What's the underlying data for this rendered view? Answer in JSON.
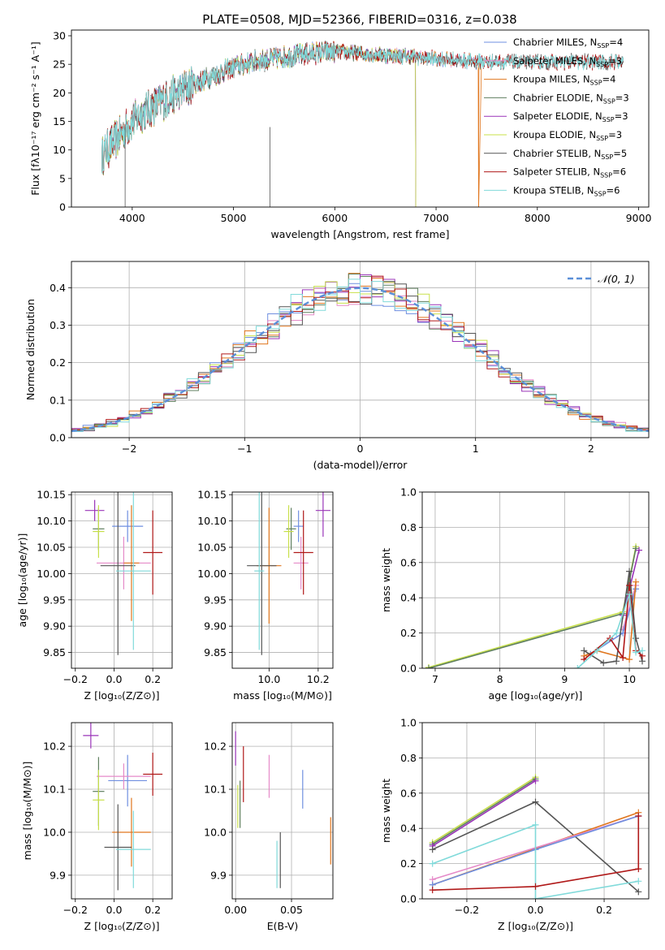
{
  "figure_title": "PLATE=0508, MJD=52366, FIBERID=0316, z=0.038",
  "colors": {
    "Chabrier MILES": "#6f8fe0",
    "Salpeter MILES": "#e58ac8",
    "Kroupa MILES": "#e0761e",
    "Chabrier ELODIE": "#5f7f5f",
    "Salpeter ELODIE": "#9a34b8",
    "Kroupa ELODIE": "#c8e04a",
    "Chabrier STELIB": "#555555",
    "Salpeter STELIB": "#b01818",
    "Kroupa STELIB": "#80dada",
    "gaussian": "#5b8fd8"
  },
  "chart_data": [
    {
      "id": "spectrum",
      "type": "line",
      "title": "PLATE=0508, MJD=52366, FIBERID=0316, z=0.038",
      "xlabel": "wavelength [Angstrom, rest frame]",
      "ylabel": "Flux [fλ10⁻¹⁷ erg cm⁻² s⁻¹ A⁻¹]",
      "xlim": [
        3400,
        9100
      ],
      "ylim": [
        0,
        31
      ],
      "xticks": [
        4000,
        5000,
        6000,
        7000,
        8000,
        9000
      ],
      "yticks": [
        0,
        5,
        10,
        15,
        20,
        25,
        30
      ],
      "legend": "top-right",
      "continuum_x": [
        3700,
        3800,
        3900,
        4000,
        4100,
        4200,
        4300,
        4400,
        4500,
        4600,
        4800,
        5000,
        5200,
        5400,
        5600,
        5800,
        6000,
        6200,
        6400,
        6600,
        6800,
        7000,
        7200,
        7400,
        7500
      ],
      "continuum_y": [
        9,
        11,
        13,
        15,
        16.5,
        17.5,
        18.5,
        19.5,
        20.5,
        21.5,
        23,
        24.5,
        25.5,
        26,
        26.5,
        27,
        27.2,
        27,
        26.7,
        26.5,
        26.3,
        26,
        25.7,
        25.5,
        25.4
      ],
      "series": [
        {
          "name": "Chabrier MILES, N_SSP=4",
          "sub": "SSP",
          "label": "Chabrier MILES, N",
          "tail": "=4",
          "xmax": 7450,
          "drop": null
        },
        {
          "name": "Salpeter MILES, N_SSP=3",
          "sub": "SSP",
          "label": "Salpeter MILES, N",
          "tail": "=3",
          "xmax": 7450,
          "drop": null
        },
        {
          "name": "Kroupa MILES, N_SSP=4",
          "sub": "SSP",
          "label": "Kroupa MILES, N",
          "tail": "=4",
          "xmax": 7450,
          "drop": 7420
        },
        {
          "name": "Chabrier ELODIE, N_SSP=3",
          "sub": "SSP",
          "label": "Chabrier ELODIE, N",
          "tail": "=3",
          "xmax": 6800,
          "drop": 6800
        },
        {
          "name": "Salpeter ELODIE, N_SSP=3",
          "sub": "SSP",
          "label": "Salpeter ELODIE, N",
          "tail": "=3",
          "xmax": 6800,
          "drop": 6800
        },
        {
          "name": "Kroupa ELODIE, N_SSP=3",
          "sub": "SSP",
          "label": "Kroupa ELODIE, N",
          "tail": "=3",
          "xmax": 6800,
          "drop": 6800
        },
        {
          "name": "Chabrier STELIB, N_SSP=5",
          "sub": "SSP",
          "label": "Chabrier STELIB, N",
          "tail": "=5",
          "xmax": 8850,
          "drop": null
        },
        {
          "name": "Salpeter STELIB, N_SSP=6",
          "sub": "SSP",
          "label": "Salpeter STELIB, N",
          "tail": "=6",
          "xmax": 8850,
          "drop": null
        },
        {
          "name": "Kroupa STELIB, N_SSP=6",
          "sub": "SSP",
          "label": "Kroupa STELIB, N",
          "tail": "=6",
          "xmax": 8850,
          "drop": null
        }
      ]
    },
    {
      "id": "residuals",
      "type": "line",
      "xlabel": "(data-model)/error",
      "ylabel": "Normed distribution",
      "xlim": [
        -2.5,
        2.5
      ],
      "ylim": [
        0,
        0.47
      ],
      "xticks": [
        -2,
        -1,
        0,
        1,
        2
      ],
      "yticks": [
        0.0,
        0.1,
        0.2,
        0.3,
        0.4
      ],
      "legend": "top-right",
      "legend_label": "𝒩(0, 1)",
      "bin_width": 0.1
    },
    {
      "id": "age_vs_Z",
      "type": "scatter",
      "xlabel": "Z [log₁₀(Z/Z⊙)]",
      "ylabel": "age  [log₁₀(age/yr)]",
      "xlim": [
        -0.22,
        0.3
      ],
      "ylim": [
        9.82,
        10.155
      ],
      "xticks": [
        -0.2,
        0.0,
        0.2
      ],
      "yticks": [
        9.85,
        9.9,
        9.95,
        10.0,
        10.05,
        10.1,
        10.15
      ],
      "points": [
        {
          "s": "Chabrier MILES",
          "x": 0.07,
          "y": 10.09,
          "xerr": 0.08,
          "yerr": 0.03
        },
        {
          "s": "Salpeter MILES",
          "x": 0.05,
          "y": 10.02,
          "xerr": 0.14,
          "yerr": 0.05
        },
        {
          "s": "Kroupa MILES",
          "x": 0.09,
          "y": 10.02,
          "xerr": 0.04,
          "yerr": 0.11
        },
        {
          "s": "Chabrier ELODIE",
          "x": -0.08,
          "y": 10.085,
          "xerr": 0.03,
          "yerr": 0.04
        },
        {
          "s": "Salpeter ELODIE",
          "x": -0.1,
          "y": 10.12,
          "xerr": 0.05,
          "yerr": 0.02
        },
        {
          "s": "Kroupa ELODIE",
          "x": -0.08,
          "y": 10.08,
          "xerr": 0.03,
          "yerr": 0.05
        },
        {
          "s": "Chabrier STELIB",
          "x": 0.02,
          "y": 10.015,
          "xerr": 0.09,
          "yerr": 0.17
        },
        {
          "s": "Salpeter STELIB",
          "x": 0.2,
          "y": 10.04,
          "xerr": 0.05,
          "yerr": 0.08
        },
        {
          "s": "Kroupa STELIB",
          "x": 0.1,
          "y": 10.005,
          "xerr": 0.09,
          "yerr": 0.15
        }
      ]
    },
    {
      "id": "age_vs_mass",
      "type": "scatter",
      "xlabel": "mass [log₁₀(M/M⊙)]",
      "ylabel": "",
      "xlim": [
        9.85,
        10.26
      ],
      "ylim": [
        9.82,
        10.155
      ],
      "xticks": [
        10.0,
        10.2
      ],
      "yticks": [
        9.85,
        9.9,
        9.95,
        10.0,
        10.05,
        10.1,
        10.15
      ],
      "points": [
        {
          "s": "Chabrier MILES",
          "x": 10.12,
          "y": 10.09,
          "xerr": 0.02,
          "yerr": 0.03
        },
        {
          "s": "Salpeter MILES",
          "x": 10.13,
          "y": 10.02,
          "xerr": 0.03,
          "yerr": 0.05
        },
        {
          "s": "Kroupa MILES",
          "x": 10.0,
          "y": 10.015,
          "xerr": 0.05,
          "yerr": 0.11
        },
        {
          "s": "Chabrier ELODIE",
          "x": 10.09,
          "y": 10.085,
          "xerr": 0.02,
          "yerr": 0.04
        },
        {
          "s": "Salpeter ELODIE",
          "x": 10.22,
          "y": 10.12,
          "xerr": 0.03,
          "yerr": 0.05
        },
        {
          "s": "Kroupa ELODIE",
          "x": 10.08,
          "y": 10.08,
          "xerr": 0.02,
          "yerr": 0.05
        },
        {
          "s": "Chabrier STELIB",
          "x": 9.97,
          "y": 10.015,
          "xerr": 0.06,
          "yerr": 0.17
        },
        {
          "s": "Salpeter STELIB",
          "x": 10.14,
          "y": 10.04,
          "xerr": 0.04,
          "yerr": 0.08
        },
        {
          "s": "Kroupa STELIB",
          "x": 9.96,
          "y": 10.005,
          "xerr": 0.02,
          "yerr": 0.15
        }
      ]
    },
    {
      "id": "weight_vs_age",
      "type": "line",
      "xlabel": "age  [log₁₀(age/yr)]",
      "ylabel": "mass weight",
      "xlim": [
        6.8,
        10.3
      ],
      "ylim": [
        0,
        1.0
      ],
      "xticks": [
        7,
        8,
        9,
        10
      ],
      "yticks": [
        0.0,
        0.2,
        0.4,
        0.6,
        0.8,
        1.0
      ],
      "series": [
        {
          "s": "Kroupa ELODIE",
          "x": [
            6.9,
            9.9,
            10.1
          ],
          "y": [
            0.005,
            0.32,
            0.69
          ]
        },
        {
          "s": "Chabrier ELODIE",
          "x": [
            6.9,
            9.9,
            10.1
          ],
          "y": [
            0.0,
            0.31,
            0.68
          ]
        },
        {
          "s": "Salpeter ELODIE",
          "x": [
            9.9,
            10.15
          ],
          "y": [
            0.3,
            0.67
          ]
        },
        {
          "s": "Salpeter MILES",
          "x": [
            9.9,
            10.1
          ],
          "y": [
            0.22,
            0.47
          ]
        },
        {
          "s": "Chabrier MILES",
          "x": [
            9.4,
            9.9,
            10.1
          ],
          "y": [
            0.08,
            0.2,
            0.45
          ]
        },
        {
          "s": "Kroupa MILES",
          "x": [
            9.3,
            9.5,
            10.0,
            10.1
          ],
          "y": [
            0.07,
            0.1,
            0.05,
            0.49
          ]
        },
        {
          "s": "Chabrier STELIB",
          "x": [
            9.3,
            9.6,
            9.8,
            10.0,
            10.1,
            10.2
          ],
          "y": [
            0.1,
            0.03,
            0.04,
            0.55,
            0.17,
            0.04
          ]
        },
        {
          "s": "Salpeter STELIB",
          "x": [
            9.3,
            9.7,
            9.9,
            10.0,
            10.1,
            10.2
          ],
          "y": [
            0.05,
            0.17,
            0.06,
            0.47,
            0.1,
            0.07
          ]
        },
        {
          "s": "Kroupa STELIB",
          "x": [
            9.2,
            9.5,
            9.8,
            10.0,
            10.1,
            10.2
          ],
          "y": [
            0.0,
            0.1,
            0.2,
            0.42,
            0.09,
            0.1
          ]
        }
      ]
    },
    {
      "id": "mass_vs_Z",
      "type": "scatter",
      "xlabel": "Z [log₁₀(Z/Z⊙)]",
      "ylabel": "mass [log₁₀(M/M⊙)]",
      "xlim": [
        -0.22,
        0.3
      ],
      "ylim": [
        9.845,
        10.255
      ],
      "xticks": [
        -0.2,
        0.0,
        0.2
      ],
      "yticks": [
        9.9,
        10.0,
        10.1,
        10.2
      ],
      "points": [
        {
          "s": "Chabrier MILES",
          "x": 0.07,
          "y": 10.12,
          "xerr": 0.1,
          "yerr": 0.06
        },
        {
          "s": "Salpeter MILES",
          "x": 0.05,
          "y": 10.13,
          "xerr": 0.14,
          "yerr": 0.03
        },
        {
          "s": "Kroupa MILES",
          "x": 0.09,
          "y": 10.0,
          "xerr": 0.1,
          "yerr": 0.08
        },
        {
          "s": "Chabrier ELODIE",
          "x": -0.08,
          "y": 10.095,
          "xerr": 0.03,
          "yerr": 0.08
        },
        {
          "s": "Salpeter ELODIE",
          "x": -0.12,
          "y": 10.225,
          "xerr": 0.04,
          "yerr": 0.03
        },
        {
          "s": "Kroupa ELODIE",
          "x": -0.08,
          "y": 10.075,
          "xerr": 0.03,
          "yerr": 0.07
        },
        {
          "s": "Chabrier STELIB",
          "x": 0.02,
          "y": 9.965,
          "xerr": 0.07,
          "yerr": 0.1
        },
        {
          "s": "Salpeter STELIB",
          "x": 0.2,
          "y": 10.135,
          "xerr": 0.05,
          "yerr": 0.05
        },
        {
          "s": "Kroupa STELIB",
          "x": 0.1,
          "y": 9.96,
          "xerr": 0.09,
          "yerr": 0.09
        }
      ]
    },
    {
      "id": "mass_vs_EBV",
      "type": "scatter",
      "xlabel": "E(B-V)",
      "ylabel": "",
      "xlim": [
        -0.003,
        0.087
      ],
      "ylim": [
        9.845,
        10.255
      ],
      "xticks": [
        0.0,
        0.05
      ],
      "yticks": [
        9.9,
        10.0,
        10.1,
        10.2
      ],
      "points": [
        {
          "s": "Chabrier MILES",
          "x": 0.06,
          "y": 10.1,
          "yerr": 0.045
        },
        {
          "s": "Salpeter MILES",
          "x": 0.03,
          "y": 10.13,
          "yerr": 0.05
        },
        {
          "s": "Kroupa MILES",
          "x": 0.085,
          "y": 9.98,
          "yerr": 0.055
        },
        {
          "s": "Chabrier ELODIE",
          "x": 0.004,
          "y": 10.065,
          "yerr": 0.055
        },
        {
          "s": "Salpeter ELODIE",
          "x": 0.0,
          "y": 10.195,
          "yerr": 0.04
        },
        {
          "s": "Kroupa ELODIE",
          "x": 0.002,
          "y": 10.06,
          "yerr": 0.05
        },
        {
          "s": "Chabrier STELIB",
          "x": 0.04,
          "y": 9.935,
          "yerr": 0.065
        },
        {
          "s": "Salpeter STELIB",
          "x": 0.007,
          "y": 10.135,
          "yerr": 0.065
        },
        {
          "s": "Kroupa STELIB",
          "x": 0.037,
          "y": 9.925,
          "yerr": 0.055
        }
      ]
    },
    {
      "id": "weight_vs_Z",
      "type": "line",
      "xlabel": "Z [log₁₀(Z/Z⊙)]",
      "ylabel": "mass weight",
      "xlim": [
        -0.33,
        0.33
      ],
      "ylim": [
        0,
        1.0
      ],
      "xticks": [
        -0.2,
        0.0,
        0.2
      ],
      "yticks": [
        0.0,
        0.2,
        0.4,
        0.6,
        0.8,
        1.0
      ],
      "series": [
        {
          "s": "Kroupa ELODIE",
          "x": [
            -0.3,
            0.0
          ],
          "y": [
            0.32,
            0.69
          ]
        },
        {
          "s": "Chabrier ELODIE",
          "x": [
            -0.3,
            0.0
          ],
          "y": [
            0.31,
            0.68
          ]
        },
        {
          "s": "Salpeter ELODIE",
          "x": [
            -0.3,
            0.0
          ],
          "y": [
            0.3,
            0.67
          ]
        },
        {
          "s": "Chabrier STELIB",
          "x": [
            -0.3,
            0.0,
            0.3
          ],
          "y": [
            0.28,
            0.55,
            0.04
          ]
        },
        {
          "s": "Kroupa MILES",
          "x": [
            -0.3,
            0.3
          ],
          "y": [
            0.08,
            0.49
          ]
        },
        {
          "s": "Salpeter MILES",
          "x": [
            -0.3,
            0.3
          ],
          "y": [
            0.11,
            0.47
          ]
        },
        {
          "s": "Chabrier MILES",
          "x": [
            -0.3,
            0.0,
            0.3
          ],
          "y": [
            0.08,
            0.28,
            0.47
          ]
        },
        {
          "s": "Kroupa STELIB",
          "x": [
            -0.3,
            0.0,
            0.0,
            0.3
          ],
          "y": [
            0.2,
            0.42,
            0.0,
            0.1
          ]
        },
        {
          "s": "Salpeter STELIB",
          "x": [
            -0.3,
            0.0,
            0.3,
            0.3
          ],
          "y": [
            0.05,
            0.07,
            0.17,
            0.47
          ]
        }
      ]
    }
  ]
}
